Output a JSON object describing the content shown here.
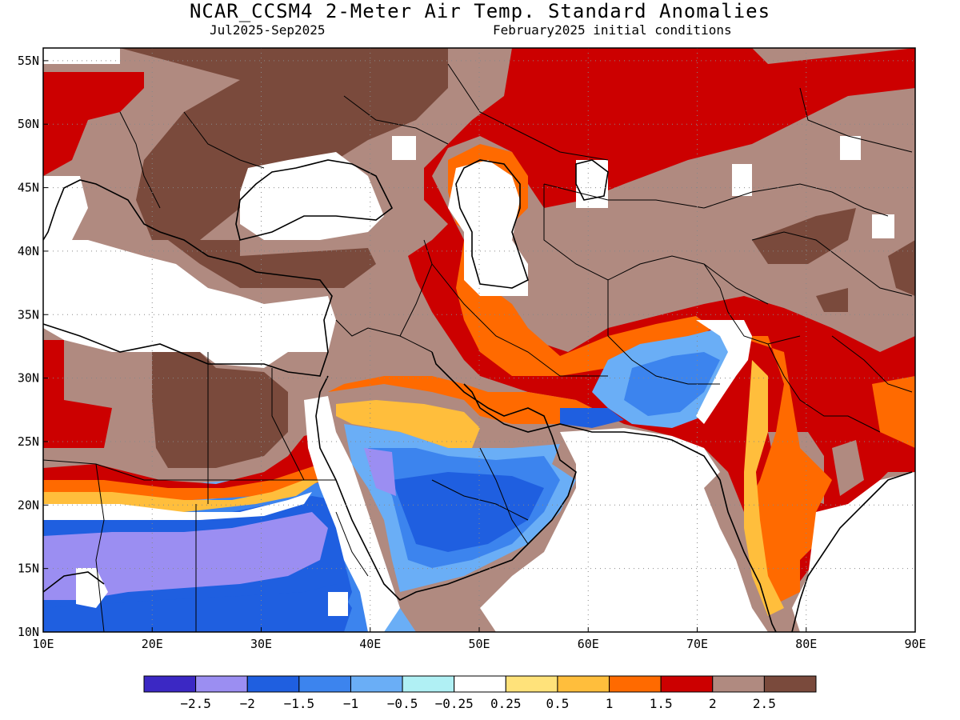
{
  "title": "NCAR_CCSM4 2-Meter Air Temp. Standard Anomalies",
  "subtitle_left": "Jul2025-Sep2025",
  "subtitle_right": "February2025 initial conditions",
  "map": {
    "lon_range": [
      10,
      90
    ],
    "lat_range": [
      10,
      56
    ],
    "lon_ticks": [
      "10E",
      "20E",
      "30E",
      "40E",
      "50E",
      "60E",
      "70E",
      "80E",
      "90E"
    ],
    "lat_ticks": [
      "55N",
      "50N",
      "45N",
      "40N",
      "35N",
      "30N",
      "25N",
      "20N",
      "15N",
      "10N"
    ],
    "grid": "dotted"
  },
  "colorbar": {
    "colors": [
      "#3b28c4",
      "#9b8ef2",
      "#1f5fe0",
      "#3c84ee",
      "#6aaef6",
      "#b0f0f4",
      "#ffffff",
      "#ffe27a",
      "#ffbe3c",
      "#ff6a00",
      "#cc0000",
      "#b08a80",
      "#7a4a3c"
    ],
    "labels": [
      "-2.5",
      "-2",
      "-1.5",
      "-1",
      "-0.5",
      "-0.25",
      "0.25",
      "0.5",
      "1",
      "1.5",
      "2",
      "2.5"
    ]
  }
}
